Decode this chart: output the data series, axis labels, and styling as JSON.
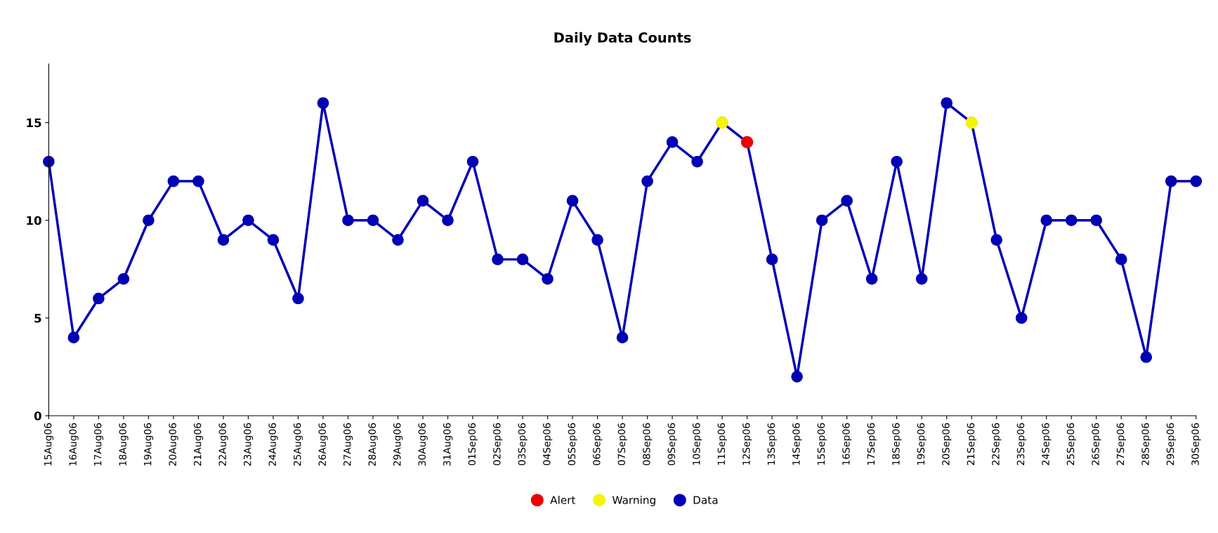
{
  "chart_data": {
    "type": "line",
    "title": "Daily Data Counts",
    "categories": [
      "15Aug06",
      "16Aug06",
      "17Aug06",
      "18Aug06",
      "19Aug06",
      "20Aug06",
      "21Aug06",
      "22Aug06",
      "23Aug06",
      "24Aug06",
      "25Aug06",
      "26Aug06",
      "27Aug06",
      "28Aug06",
      "29Aug06",
      "30Aug06",
      "31Aug06",
      "01Sep06",
      "02Sep06",
      "03Sep06",
      "04Sep06",
      "05Sep06",
      "06Sep06",
      "07Sep06",
      "08Sep06",
      "09Sep06",
      "10Sep06",
      "11Sep06",
      "12Sep06",
      "13Sep06",
      "14Sep06",
      "15Sep06",
      "16Sep06",
      "17Sep06",
      "18Sep06",
      "19Sep06",
      "20Sep06",
      "21Sep06",
      "22Sep06",
      "23Sep06",
      "24Sep06",
      "25Sep06",
      "26Sep06",
      "27Sep06",
      "28Sep06",
      "29Sep06",
      "30Sep06"
    ],
    "series": [
      {
        "name": "Alert",
        "type": "scatter",
        "color": "#ee0000",
        "values": [
          null,
          null,
          null,
          null,
          null,
          null,
          null,
          null,
          null,
          null,
          null,
          null,
          null,
          null,
          null,
          null,
          null,
          null,
          null,
          null,
          null,
          null,
          null,
          null,
          null,
          null,
          null,
          null,
          14,
          null,
          null,
          null,
          null,
          null,
          null,
          null,
          null,
          null,
          null,
          null,
          null,
          null,
          null,
          null,
          null,
          null,
          null
        ]
      },
      {
        "name": "Warning",
        "type": "scatter",
        "color": "#f5f500",
        "values": [
          null,
          null,
          null,
          null,
          null,
          null,
          null,
          null,
          null,
          null,
          null,
          null,
          null,
          null,
          null,
          null,
          null,
          null,
          null,
          null,
          null,
          null,
          null,
          null,
          null,
          null,
          null,
          15,
          null,
          null,
          null,
          null,
          null,
          null,
          null,
          null,
          null,
          15,
          null,
          null,
          null,
          null,
          null,
          null,
          null,
          null,
          null
        ]
      },
      {
        "name": "Data",
        "color": "#0000b4",
        "values": [
          13,
          4,
          6,
          7,
          10,
          12,
          12,
          9,
          10,
          9,
          6,
          16,
          10,
          10,
          9,
          11,
          10,
          13,
          8,
          8,
          7,
          11,
          9,
          4,
          12,
          14,
          13,
          15,
          14,
          8,
          2,
          10,
          11,
          7,
          13,
          7,
          16,
          15,
          9,
          5,
          10,
          10,
          10,
          8,
          3,
          12,
          12
        ]
      }
    ],
    "ylim": [
      0,
      18
    ],
    "yticks": [
      0,
      5,
      10,
      15
    ],
    "grid": false,
    "legend": "bottom",
    "marker": "circle"
  }
}
